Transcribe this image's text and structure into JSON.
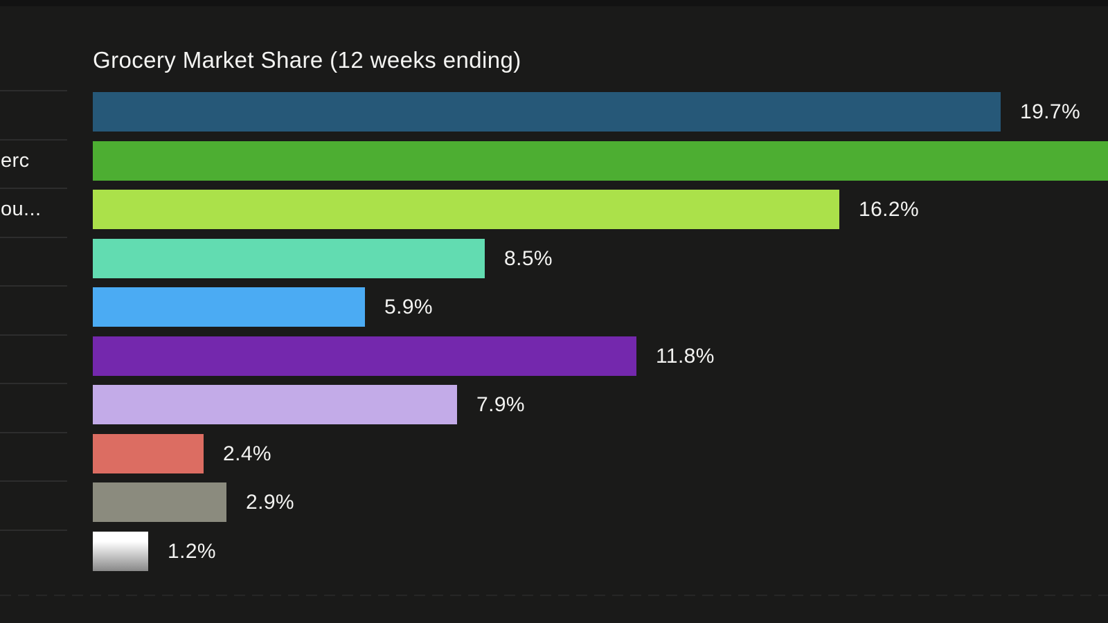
{
  "page": {
    "background": "#1a1a19",
    "top_strip_color": "#121212",
    "text_color": "#f3f3f1",
    "divider_color": "#2d2d2d",
    "cropped_left": true
  },
  "chart_data": {
    "type": "bar",
    "orientation": "horizontal",
    "title": "Grocery Market Share (12 weeks ending)",
    "value_unit": "%",
    "xlabel": "",
    "ylabel": "",
    "grid": "row dividers on left label column only",
    "legend": "none",
    "rows": [
      {
        "label_fragment": "",
        "value_pct": 19.7,
        "value_label": "19.7%",
        "color": "#265878",
        "clipped_right": false
      },
      {
        "label_fragment": "erc",
        "value_pct": null,
        "value_label": "",
        "color": "#4dae32",
        "clipped_right": true
      },
      {
        "label_fragment": "ou...",
        "value_pct": 16.2,
        "value_label": "16.2%",
        "color": "#abe14a",
        "clipped_right": false
      },
      {
        "label_fragment": "",
        "value_pct": 8.5,
        "value_label": "8.5%",
        "color": "#62dcb1",
        "clipped_right": false
      },
      {
        "label_fragment": "",
        "value_pct": 5.9,
        "value_label": "5.9%",
        "color": "#4babf3",
        "clipped_right": false
      },
      {
        "label_fragment": "",
        "value_pct": 11.8,
        "value_label": "11.8%",
        "color": "#7428ad",
        "clipped_right": false
      },
      {
        "label_fragment": "",
        "value_pct": 7.9,
        "value_label": "7.9%",
        "color": "#c3abe8",
        "clipped_right": false
      },
      {
        "label_fragment": "",
        "value_pct": 2.4,
        "value_label": "2.4%",
        "color": "#dc6d62",
        "clipped_right": false
      },
      {
        "label_fragment": "",
        "value_pct": 2.9,
        "value_label": "2.9%",
        "color": "#8b8b7e",
        "clipped_right": false
      },
      {
        "label_fragment": "",
        "value_pct": 1.2,
        "value_label": "1.2%",
        "color": "#ffffff",
        "gradient": [
          "#ffffff",
          "#888888"
        ],
        "clipped_right": false
      }
    ]
  }
}
